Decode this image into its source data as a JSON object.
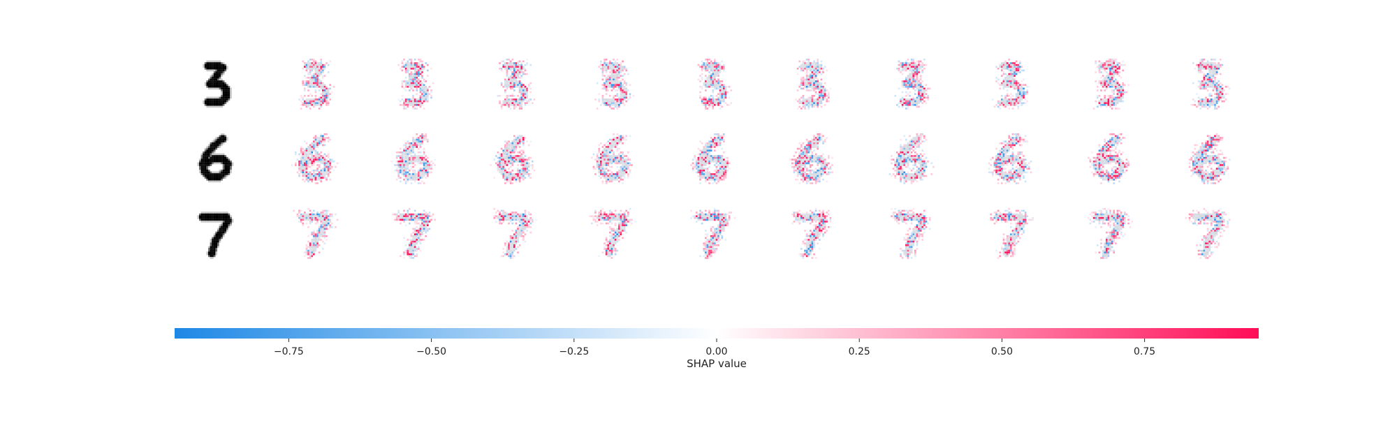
{
  "chart_data": {
    "type": "heatmap",
    "title": "",
    "rows": [
      {
        "digit": "3"
      },
      {
        "digit": "6"
      },
      {
        "digit": "7"
      }
    ],
    "outputs_per_row": 10,
    "colorbar": {
      "label": "SHAP value",
      "range": [
        -0.95,
        0.95
      ],
      "ticks": [
        -0.75,
        -0.5,
        -0.25,
        0.0,
        0.25,
        0.5,
        0.75
      ],
      "tick_labels": [
        "−0.75",
        "−0.50",
        "−0.25",
        "0.00",
        "0.25",
        "0.50",
        "0.75"
      ],
      "colors": {
        "negative": "#1e88e5",
        "zero": "#ffffff",
        "positive": "#ff0d57"
      }
    }
  }
}
